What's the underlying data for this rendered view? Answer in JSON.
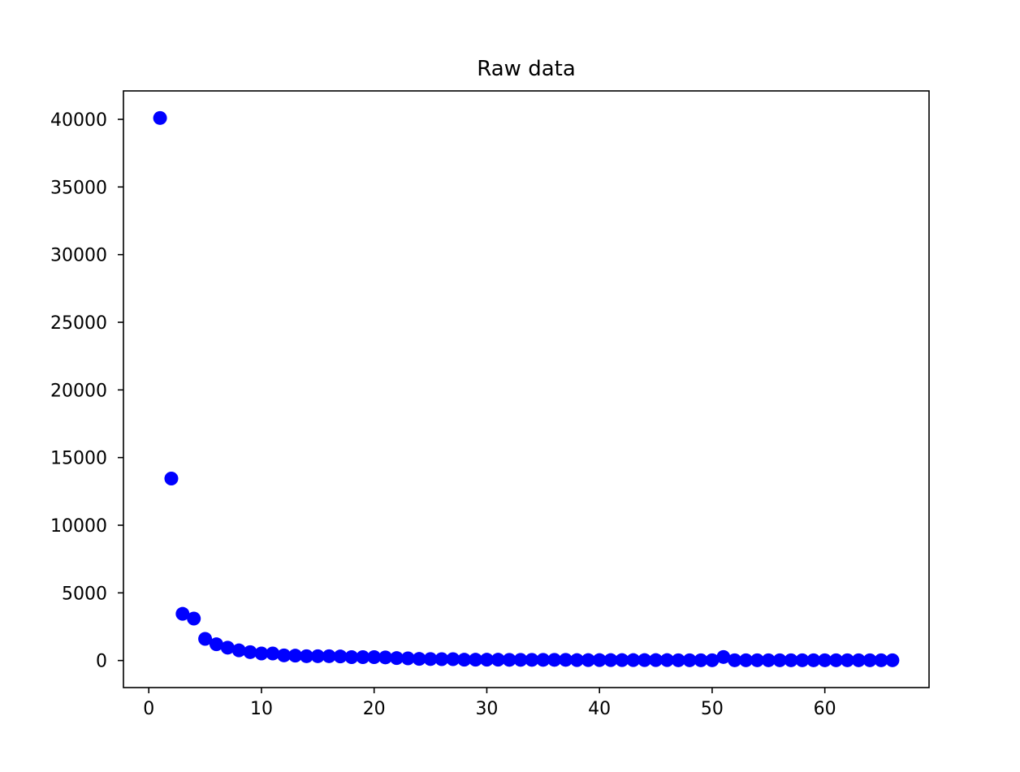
{
  "chart_data": {
    "type": "scatter",
    "title": "Raw data",
    "xlabel": "",
    "ylabel": "",
    "xlim": [
      -2.25,
      69.25
    ],
    "ylim": [
      -2000,
      42100
    ],
    "xticks": [
      0,
      10,
      20,
      30,
      40,
      50,
      60
    ],
    "yticks": [
      0,
      5000,
      10000,
      15000,
      20000,
      25000,
      30000,
      35000,
      40000
    ],
    "grid": false,
    "legend": "none",
    "marker_color": "#0000ff",
    "series": [
      {
        "x": [
          1,
          2,
          3,
          4,
          5,
          6,
          7,
          8,
          9,
          10,
          11,
          12,
          13,
          14,
          15,
          16,
          17,
          18,
          19,
          20,
          21,
          22,
          23,
          24,
          25,
          26,
          27,
          28,
          29,
          30,
          31,
          32,
          33,
          34,
          35,
          36,
          37,
          38,
          39,
          40,
          41,
          42,
          43,
          44,
          45,
          46,
          47,
          48,
          49,
          50,
          51,
          52,
          53,
          54,
          55,
          56,
          57,
          58,
          59,
          60,
          61,
          62,
          63,
          64,
          65,
          66
        ],
        "y": [
          40100,
          13450,
          3450,
          3100,
          1600,
          1200,
          950,
          750,
          620,
          520,
          520,
          380,
          360,
          320,
          320,
          320,
          300,
          250,
          250,
          250,
          230,
          180,
          160,
          120,
          110,
          100,
          100,
          60,
          60,
          60,
          60,
          50,
          50,
          50,
          50,
          50,
          50,
          30,
          30,
          30,
          30,
          30,
          30,
          30,
          30,
          30,
          20,
          20,
          20,
          20,
          260,
          20,
          20,
          20,
          20,
          20,
          20,
          20,
          20,
          20,
          20,
          20,
          20,
          20,
          20,
          20
        ]
      }
    ]
  }
}
